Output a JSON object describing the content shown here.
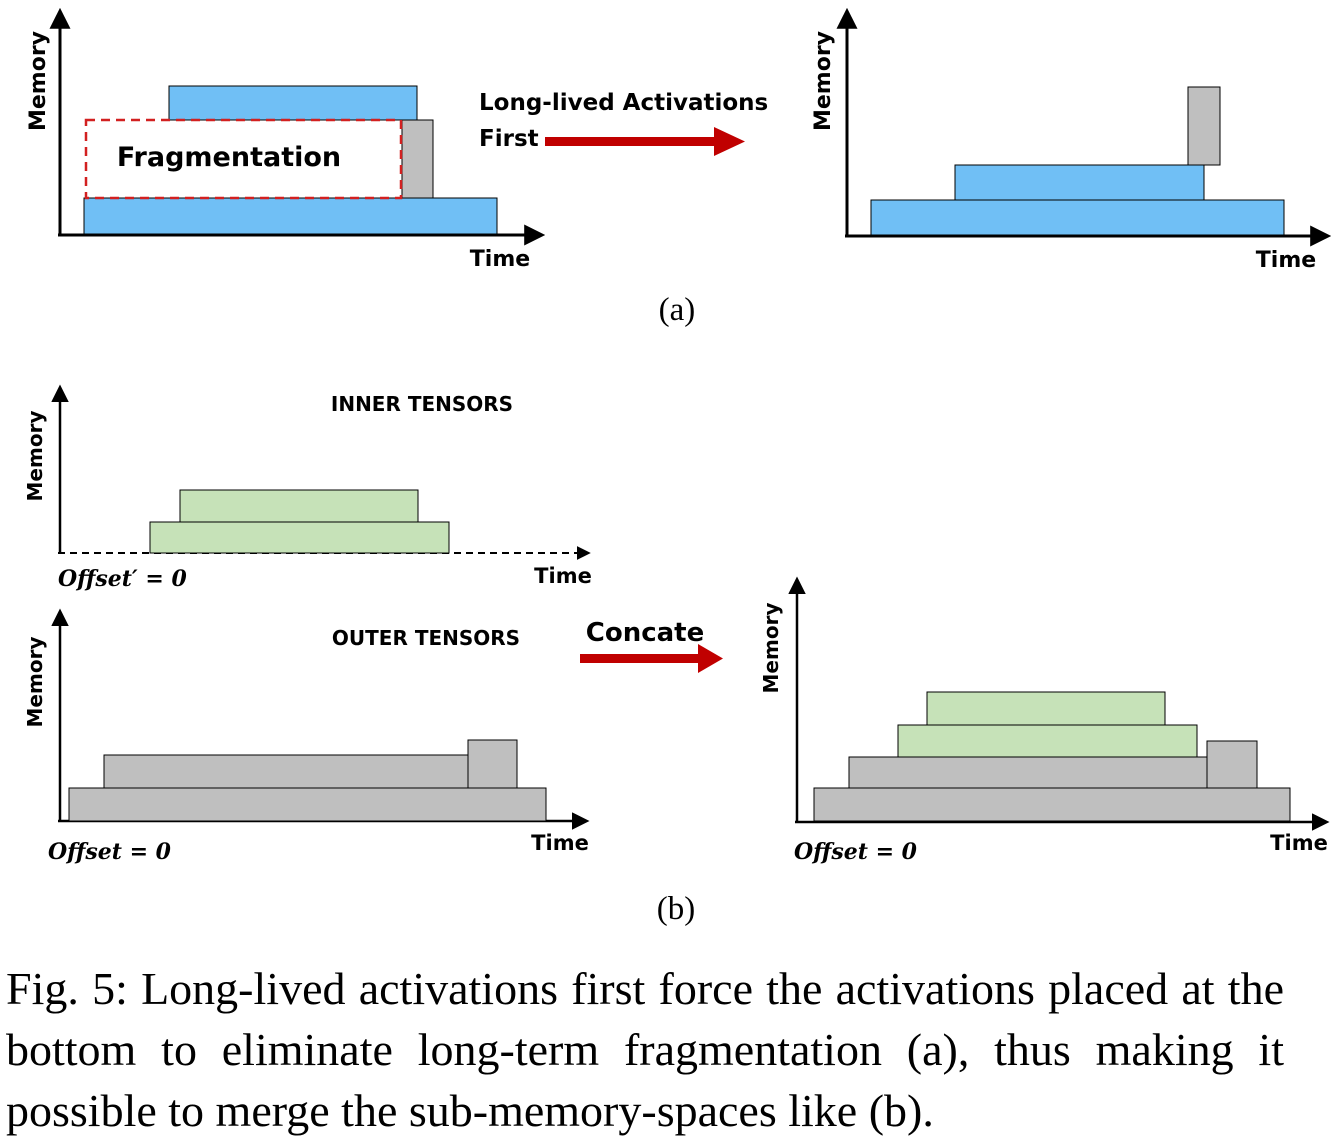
{
  "colors": {
    "blue": "#70bff5",
    "gray": "#bfbfbf",
    "green": "#c6e2b8",
    "arrow_red": "#c00000",
    "frag_border": "#d22020"
  },
  "panel_a": {
    "left": {
      "y_label": "Memory",
      "x_label": "Time",
      "fragmentation_label": "Fragmentation"
    },
    "arrow_label_line1": "Long-lived Activations",
    "arrow_label_line2": "First",
    "right": {
      "y_label": "Memory",
      "x_label": "Time"
    },
    "sublabel": "(a)"
  },
  "panel_b": {
    "inner": {
      "title": "INNER TENSORS",
      "y_label": "Memory",
      "x_label": "Time",
      "offset_label": "Offset′ = 0"
    },
    "outer": {
      "title": "OUTER TENSORS",
      "y_label": "Memory",
      "x_label": "Time",
      "offset_label": "Offset = 0"
    },
    "arrow_label": "Concate",
    "merged": {
      "y_label": "Memory",
      "x_label": "Time",
      "offset_label": "Offset = 0"
    },
    "sublabel": "(b)"
  },
  "caption": "Fig. 5: Long-lived activations first force the activations placed at the bottom to eliminate long-term fragmentation (a), thus making it possible to merge the sub-memory-spaces like (b)."
}
